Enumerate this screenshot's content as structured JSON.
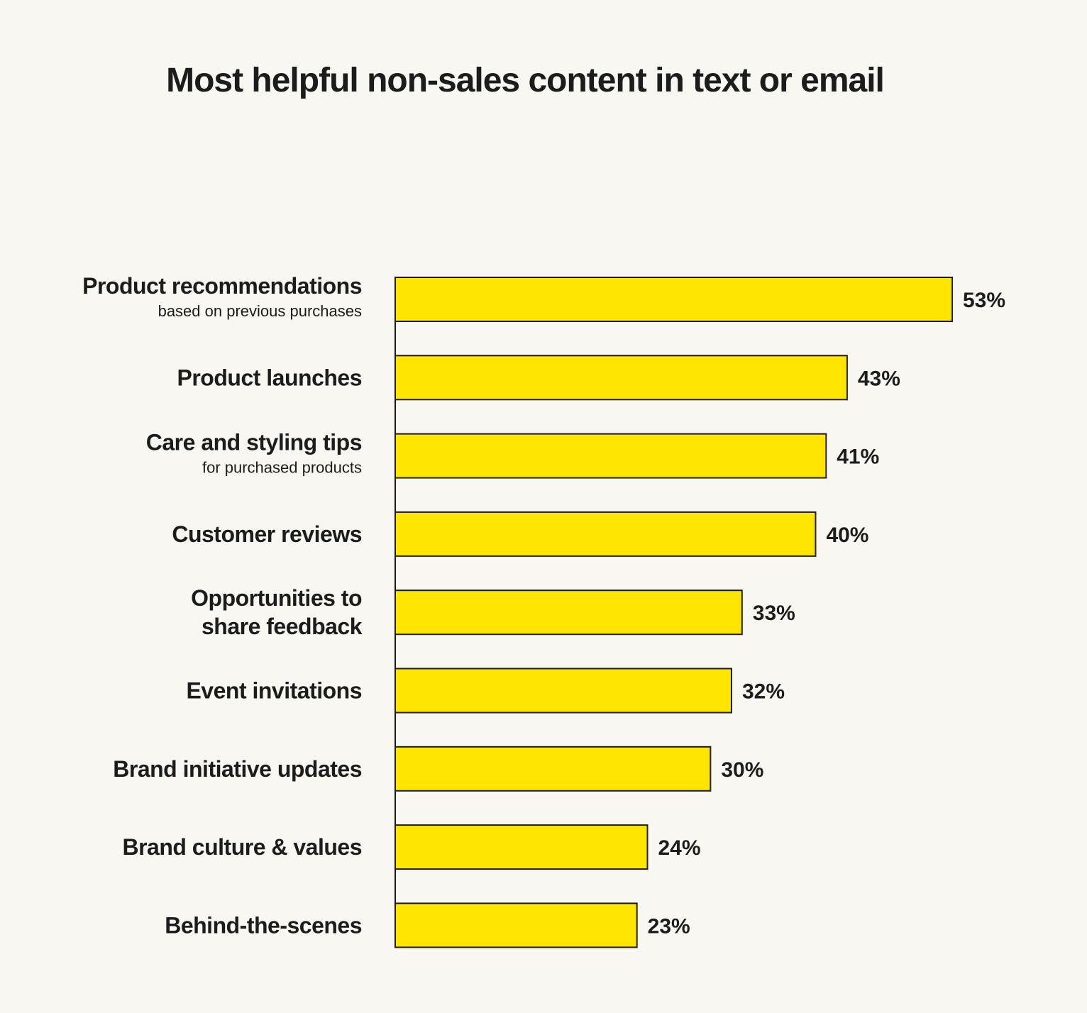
{
  "chart_data": {
    "type": "bar",
    "orientation": "horizontal",
    "title": "Most helpful non-sales content in text or email",
    "xlabel": "",
    "ylabel": "",
    "xlim": [
      0,
      53
    ],
    "grid": false,
    "value_suffix": "%",
    "categories": [
      {
        "label": "Product recommendations",
        "sublabel": "based on previous purchases"
      },
      {
        "label": "Product launches"
      },
      {
        "label": "Care and styling tips",
        "sublabel": "for purchased products"
      },
      {
        "label": "Customer reviews"
      },
      {
        "label": [
          "Opportunities to",
          "share feedback"
        ]
      },
      {
        "label": "Event invitations"
      },
      {
        "label": "Brand initiative updates"
      },
      {
        "label": "Brand culture & values"
      },
      {
        "label": "Behind-the-scenes"
      }
    ],
    "values": [
      53,
      43,
      41,
      40,
      33,
      32,
      30,
      24,
      23
    ],
    "value_labels": [
      "53%",
      "43%",
      "41%",
      "40%",
      "33%",
      "32%",
      "30%",
      "24%",
      "23%"
    ],
    "colors": {
      "bar_fill": "#ffe500",
      "bar_stroke": "#1c1c1c",
      "axis": "#1c1c1c",
      "text": "#1c1c1c",
      "background": "#f8f7f1"
    }
  }
}
